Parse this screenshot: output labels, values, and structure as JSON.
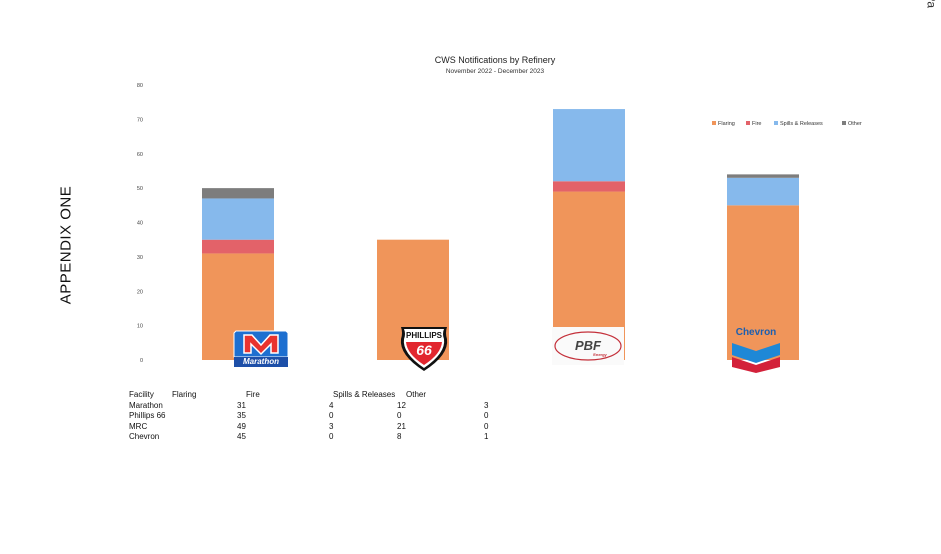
{
  "side_label": "APPENDIX ONE",
  "page_corner": "Pa",
  "chart_data": {
    "type": "bar",
    "stacked": true,
    "title": "CWS Notifications by Refinery",
    "subtitle": "November 2022 - December 2023",
    "categories": [
      "Marathon",
      "Phillips 66",
      "MRC",
      "Chevron"
    ],
    "series": [
      {
        "name": "Flaring",
        "color": "#f0955a",
        "values": [
          31,
          35,
          49,
          45
        ]
      },
      {
        "name": "Fire",
        "color": "#e36269",
        "values": [
          4,
          0,
          3,
          0
        ]
      },
      {
        "name": "Spills & Releases",
        "color": "#86b9ec",
        "values": [
          12,
          0,
          21,
          8
        ]
      },
      {
        "name": "Other",
        "color": "#7d7d7d",
        "values": [
          3,
          0,
          0,
          1
        ]
      }
    ],
    "ylim": [
      0,
      80
    ],
    "yticks": [
      "0",
      "10",
      "20",
      "30",
      "40",
      "50",
      "60",
      "70",
      "80"
    ],
    "legend_position": "top-right",
    "grid": false
  },
  "logos": {
    "marathon": {
      "letter": "M",
      "word": "Marathon"
    },
    "p66": {
      "top": "PHILLIPS",
      "num": "66"
    },
    "pbf": {
      "word": "PBF",
      "sub": "Energy"
    },
    "chevron": {
      "word": "Chevron"
    }
  },
  "table": {
    "headers": [
      "Facility",
      "Flaring",
      "Fire",
      "Spills & Releases",
      "Other"
    ],
    "rows": [
      [
        "Marathon",
        "31",
        "4",
        "12",
        "3"
      ],
      [
        "Phillips 66",
        "35",
        "0",
        "0",
        "0"
      ],
      [
        "MRC",
        "49",
        "3",
        "21",
        "0"
      ],
      [
        "Chevron",
        "45",
        "0",
        "8",
        "1"
      ]
    ]
  }
}
